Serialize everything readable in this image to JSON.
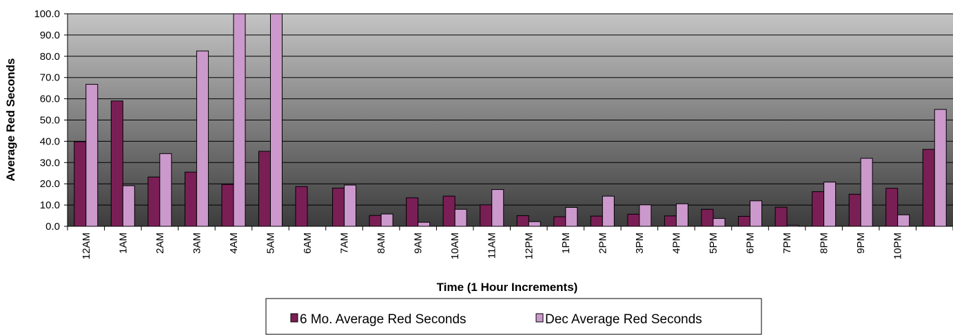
{
  "chart_data": {
    "type": "bar",
    "title": "",
    "xlabel": "Time (1 Hour Increments)",
    "ylabel": "Average Red Seconds",
    "ylim": [
      0,
      100
    ],
    "yticks": [
      "0.0",
      "10.0",
      "20.0",
      "30.0",
      "40.0",
      "50.0",
      "60.0",
      "70.0",
      "80.0",
      "90.0",
      "100.0"
    ],
    "grid": true,
    "legend_position": "bottom",
    "categories": [
      "12AM",
      "1AM",
      "2AM",
      "3AM",
      "4AM",
      "5AM",
      "6AM",
      "7AM",
      "8AM",
      "9AM",
      "10AM",
      "11AM",
      "12PM",
      "1PM",
      "2PM",
      "3PM",
      "4PM",
      "5PM",
      "6PM",
      "7PM",
      "8PM",
      "9PM",
      "10PM",
      ""
    ],
    "series": [
      {
        "name": "6 Mo. Average Red Seconds",
        "color": "#7a1f55",
        "values": [
          39.8,
          59.0,
          23.2,
          25.5,
          19.7,
          35.3,
          18.7,
          18.0,
          5.1,
          13.4,
          14.2,
          10.1,
          5.0,
          4.5,
          4.8,
          5.7,
          4.9,
          8.0,
          4.7,
          9.0,
          16.3,
          15.1,
          17.9,
          36.2
        ]
      },
      {
        "name": "Dec Average Red Seconds",
        "color": "#cc99cc",
        "values": [
          66.8,
          19.1,
          34.2,
          82.5,
          100.0,
          100.0,
          0.0,
          19.4,
          5.8,
          1.9,
          8.0,
          17.3,
          2.2,
          8.9,
          14.2,
          10.1,
          10.6,
          3.7,
          12.0,
          0.5,
          20.8,
          32.0,
          5.4,
          55.0
        ]
      }
    ]
  }
}
